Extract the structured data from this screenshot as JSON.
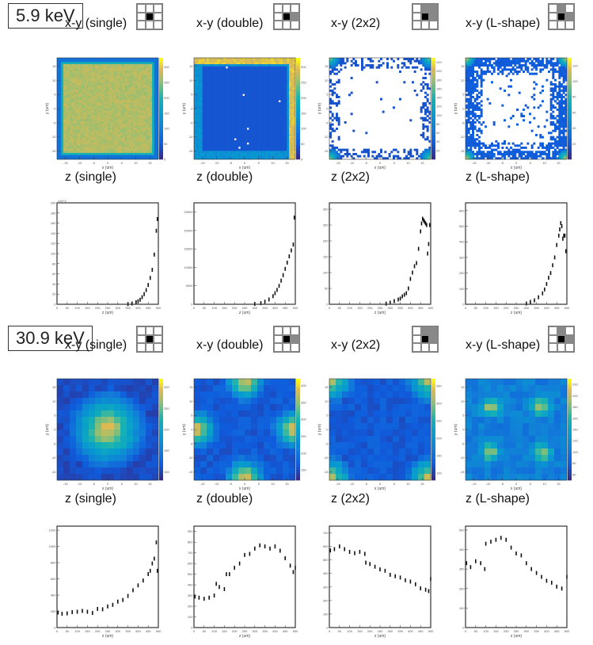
{
  "sections": [
    {
      "energy_label": "5.9 keV"
    },
    {
      "energy_label": "30.9 keV"
    }
  ],
  "pixel_patterns": {
    "single": [
      "w",
      "w",
      "w",
      "w",
      "c",
      "w",
      "w",
      "w",
      "w"
    ],
    "double": [
      "w",
      "w",
      "w",
      "w",
      "c",
      "g",
      "w",
      "w",
      "w"
    ],
    "2x2": [
      "w",
      "g",
      "g",
      "w",
      "c",
      "g",
      "w",
      "w",
      "w"
    ],
    "L-shape": [
      "w",
      "g",
      "w",
      "w",
      "c",
      "g",
      "w",
      "w",
      "w"
    ]
  },
  "chart_data": [
    {
      "id": "xy-single-5.9",
      "type": "heatmap",
      "title": "x-y (single)",
      "pattern": "single",
      "xlabel": "x (um)",
      "ylabel": "y (um)",
      "xticks": [
        -15,
        -10,
        -5,
        0,
        5,
        10,
        15
      ],
      "yticks": [
        -15,
        -10,
        -5,
        0,
        5,
        10,
        15
      ],
      "xlim": [
        -18,
        18
      ],
      "ylim": [
        -18,
        18
      ],
      "zticks": [
        0,
        50,
        100,
        150,
        200,
        250,
        300
      ],
      "zlim": [
        0,
        330
      ],
      "description": "uniform high (~280) interior, low at borders"
    },
    {
      "id": "xy-double-5.9",
      "type": "heatmap",
      "title": "x-y (double)",
      "pattern": "double",
      "xlabel": "x (um)",
      "ylabel": "y (um)",
      "xticks": [
        -15,
        -10,
        -5,
        0,
        5,
        10,
        15
      ],
      "yticks": [
        -15,
        -10,
        -5,
        0,
        5,
        10,
        15
      ],
      "xlim": [
        -18,
        18
      ],
      "ylim": [
        -18,
        18
      ],
      "zticks": [
        0,
        50,
        100,
        150,
        200,
        250,
        300
      ],
      "zlim": [
        0,
        330
      ],
      "description": "low interior, high along top and right edges"
    },
    {
      "id": "xy-2x2-5.9",
      "type": "heatmap",
      "title": "x-y (2x2)",
      "pattern": "2x2",
      "xlabel": "x (um)",
      "ylabel": "y (um)",
      "xticks": [
        -15,
        -10,
        -5,
        0,
        5,
        10,
        15
      ],
      "yticks": [
        -15,
        -10,
        -5,
        0,
        5,
        10,
        15
      ],
      "xlim": [
        -18,
        18
      ],
      "ylim": [
        -18,
        18
      ],
      "zticks": [
        20,
        40,
        60,
        80,
        100,
        120,
        140,
        160,
        180,
        200,
        220
      ],
      "zlim": [
        0,
        230
      ],
      "description": "mostly empty, counts concentrated at corners"
    },
    {
      "id": "xy-lshape-5.9",
      "type": "heatmap",
      "title": "x-y (L-shape)",
      "pattern": "L-shape",
      "xlabel": "x (um)",
      "ylabel": "y (um)",
      "xticks": [
        -15,
        -10,
        -5,
        0,
        5,
        10,
        15
      ],
      "yticks": [
        -15,
        -10,
        -5,
        0,
        5,
        10,
        15
      ],
      "xlim": [
        -18,
        18
      ],
      "ylim": [
        -18,
        18
      ],
      "zticks": [
        20,
        40,
        60,
        80,
        100,
        120
      ],
      "zlim": [
        0,
        130
      ],
      "description": "sparse interior, denser near edges and corners"
    },
    {
      "id": "z-single-5.9",
      "type": "scatter",
      "title": "z (single)",
      "xlabel": "z (um)",
      "xlim": [
        0,
        500
      ],
      "ylim": [
        0,
        200000
      ],
      "xticks": [
        0,
        50,
        100,
        150,
        200,
        250,
        300,
        350,
        400,
        450,
        500
      ],
      "yticks": [
        0,
        20000,
        40000,
        60000,
        80000,
        100000,
        120000,
        140000,
        160000,
        180000,
        200000
      ],
      "y_multiplier_label": "x10^3",
      "x": [
        350,
        370,
        390,
        400,
        410,
        420,
        430,
        440,
        450,
        460,
        470,
        480,
        490,
        495
      ],
      "y": [
        500,
        1500,
        4000,
        6000,
        9000,
        14000,
        20000,
        28000,
        38000,
        52000,
        68000,
        98000,
        145000,
        168000
      ]
    },
    {
      "id": "z-double-5.9",
      "type": "scatter",
      "title": "z (double)",
      "xlabel": "z (um)",
      "xlim": [
        0,
        500
      ],
      "ylim": [
        0,
        27500
      ],
      "xticks": [
        0,
        50,
        100,
        150,
        200,
        250,
        300,
        350,
        400,
        450,
        500
      ],
      "yticks": [
        0,
        5000,
        10000,
        15000,
        20000,
        25000
      ],
      "x": [
        300,
        330,
        350,
        370,
        390,
        400,
        410,
        420,
        430,
        440,
        450,
        460,
        470,
        480,
        490,
        495
      ],
      "y": [
        100,
        300,
        700,
        1300,
        2200,
        3000,
        3900,
        5000,
        6400,
        7900,
        9600,
        11300,
        13000,
        14600,
        16200,
        23500
      ]
    },
    {
      "id": "z-2x2-5.9",
      "type": "scatter",
      "title": "z (2x2)",
      "xlabel": "z (um)",
      "xlim": [
        0,
        500
      ],
      "ylim": [
        0,
        320
      ],
      "xticks": [
        0,
        50,
        100,
        150,
        200,
        250,
        300,
        350,
        400,
        450,
        500
      ],
      "yticks": [
        0,
        50,
        100,
        150,
        200,
        250,
        300
      ],
      "x": [
        280,
        300,
        320,
        340,
        350,
        360,
        370,
        380,
        390,
        400,
        410,
        420,
        430,
        440,
        450,
        455,
        460,
        465,
        470,
        475,
        480,
        485,
        490,
        495
      ],
      "y": [
        2,
        5,
        10,
        15,
        18,
        25,
        30,
        35,
        50,
        80,
        100,
        120,
        130,
        175,
        230,
        255,
        270,
        265,
        260,
        255,
        250,
        160,
        190,
        250
      ]
    },
    {
      "id": "z-lshape-5.9",
      "type": "scatter",
      "title": "z (L-shape)",
      "xlabel": "z (um)",
      "xlim": [
        0,
        500
      ],
      "ylim": [
        0,
        650
      ],
      "xticks": [
        0,
        50,
        100,
        150,
        200,
        250,
        300,
        350,
        400,
        450,
        500
      ],
      "yticks": [
        0,
        100,
        200,
        300,
        400,
        500,
        600
      ],
      "x": [
        300,
        320,
        340,
        360,
        380,
        390,
        400,
        410,
        420,
        430,
        440,
        450,
        460,
        465,
        470,
        475,
        480,
        485,
        490,
        495
      ],
      "y": [
        5,
        15,
        25,
        45,
        70,
        95,
        130,
        170,
        200,
        250,
        300,
        380,
        440,
        480,
        520,
        500,
        420,
        440,
        440,
        340
      ]
    },
    {
      "id": "xy-single-30.9",
      "type": "heatmap",
      "title": "x-y (single)",
      "pattern": "single",
      "xlabel": "x (um)",
      "ylabel": "y (um)",
      "xticks": [
        -15,
        -10,
        -5,
        0,
        5,
        10,
        15
      ],
      "yticks": [
        -15,
        -10,
        -5,
        0,
        5,
        10,
        15
      ],
      "xlim": [
        -18,
        18
      ],
      "ylim": [
        -18,
        18
      ],
      "zticks": [
        100,
        150,
        200,
        250,
        300
      ],
      "zlim": [
        80,
        320
      ],
      "description": "peak at center"
    },
    {
      "id": "xy-double-30.9",
      "type": "heatmap",
      "title": "x-y (double)",
      "pattern": "double",
      "xlabel": "x (um)",
      "ylabel": "y (um)",
      "xticks": [
        -15,
        -10,
        -5,
        0,
        5,
        10,
        15
      ],
      "yticks": [
        -15,
        -10,
        -5,
        0,
        5,
        10,
        15
      ],
      "xlim": [
        -18,
        18
      ],
      "ylim": [
        -18,
        18
      ],
      "zticks": [
        150,
        200,
        250,
        300,
        350,
        400
      ],
      "zlim": [
        120,
        420
      ],
      "description": "peaks at edge midpoints"
    },
    {
      "id": "xy-2x2-30.9",
      "type": "heatmap",
      "title": "x-y (2x2)",
      "pattern": "2x2",
      "xlabel": "x (um)",
      "ylabel": "y (um)",
      "xticks": [
        -15,
        -10,
        -5,
        0,
        5,
        10,
        15
      ],
      "yticks": [
        -15,
        -10,
        -5,
        0,
        5,
        10,
        15
      ],
      "xlim": [
        -18,
        18
      ],
      "ylim": [
        -18,
        18
      ],
      "zticks": [
        100,
        150,
        200,
        250,
        300,
        350
      ],
      "zlim": [
        80,
        370
      ],
      "description": "peaks at corners"
    },
    {
      "id": "xy-lshape-30.9",
      "type": "heatmap",
      "title": "x-y (L-shape)",
      "pattern": "L-shape",
      "xlabel": "x (um)",
      "ylabel": "y (um)",
      "xticks": [
        -15,
        -10,
        -5,
        0,
        5,
        10,
        15
      ],
      "yticks": [
        -15,
        -10,
        -5,
        0,
        5,
        10,
        15
      ],
      "xlim": [
        -18,
        18
      ],
      "ylim": [
        -18,
        18
      ],
      "zticks": [
        60,
        80,
        100,
        120,
        140,
        160,
        180,
        200,
        220
      ],
      "zlim": [
        50,
        230
      ],
      "description": "peaks at four off-center quadrants"
    },
    {
      "id": "z-single-30.9",
      "type": "scatter",
      "title": "z (single)",
      "xlabel": "z (um)",
      "xlim": [
        0,
        500
      ],
      "ylim": [
        0,
        1250
      ],
      "xticks": [
        0,
        50,
        100,
        150,
        200,
        250,
        300,
        350,
        400,
        450,
        500
      ],
      "yticks": [
        0,
        200,
        400,
        600,
        800,
        1000,
        1200
      ],
      "x": [
        5,
        25,
        50,
        75,
        100,
        125,
        150,
        175,
        200,
        225,
        250,
        275,
        300,
        325,
        350,
        375,
        400,
        425,
        450,
        460,
        470,
        480,
        490,
        495
      ],
      "y": [
        185,
        170,
        175,
        190,
        195,
        205,
        195,
        180,
        230,
        225,
        260,
        280,
        320,
        340,
        390,
        460,
        520,
        580,
        660,
        700,
        790,
        850,
        1050,
        700
      ]
    },
    {
      "id": "z-double-30.9",
      "type": "scatter",
      "title": "z (double)",
      "xlabel": "z (um)",
      "xlim": [
        0,
        500
      ],
      "ylim": [
        0,
        950
      ],
      "xticks": [
        0,
        50,
        100,
        150,
        200,
        250,
        300,
        350,
        400,
        450,
        500
      ],
      "yticks": [
        0,
        100,
        200,
        300,
        400,
        500,
        600,
        700,
        800,
        900
      ],
      "x": [
        5,
        25,
        50,
        75,
        100,
        110,
        125,
        150,
        160,
        175,
        200,
        225,
        250,
        275,
        300,
        325,
        350,
        375,
        400,
        425,
        450,
        475,
        490,
        500
      ],
      "y": [
        290,
        280,
        270,
        280,
        300,
        410,
        380,
        360,
        500,
        500,
        560,
        600,
        680,
        690,
        740,
        770,
        760,
        740,
        760,
        720,
        650,
        580,
        520,
        560
      ]
    },
    {
      "id": "z-2x2-30.9",
      "type": "scatter",
      "title": "z (2x2)",
      "xlabel": "z (um)",
      "xlim": [
        0,
        500
      ],
      "ylim": [
        0,
        750
      ],
      "xticks": [
        0,
        50,
        100,
        150,
        200,
        250,
        300,
        350,
        400,
        450,
        500
      ],
      "yticks": [
        0,
        100,
        200,
        300,
        400,
        500,
        600,
        700
      ],
      "x": [
        5,
        25,
        50,
        75,
        100,
        125,
        150,
        175,
        180,
        200,
        225,
        250,
        275,
        300,
        325,
        350,
        375,
        400,
        425,
        450,
        475,
        490,
        500
      ],
      "y": [
        570,
        580,
        600,
        580,
        560,
        550,
        560,
        545,
        480,
        470,
        450,
        430,
        420,
        390,
        380,
        370,
        350,
        340,
        320,
        290,
        280,
        270,
        360
      ]
    },
    {
      "id": "z-lshape-30.9",
      "type": "scatter",
      "title": "z (L-shape)",
      "xlabel": "z (um)",
      "xlim": [
        0,
        500
      ],
      "ylim": [
        0,
        520
      ],
      "xticks": [
        0,
        50,
        100,
        150,
        200,
        250,
        300,
        350,
        400,
        450,
        500
      ],
      "yticks": [
        0,
        100,
        200,
        300,
        400,
        500
      ],
      "x": [
        5,
        25,
        50,
        75,
        95,
        100,
        125,
        150,
        175,
        200,
        225,
        250,
        275,
        300,
        325,
        350,
        375,
        400,
        425,
        450,
        475,
        500
      ],
      "y": [
        330,
        310,
        340,
        330,
        300,
        430,
        440,
        450,
        460,
        450,
        410,
        380,
        370,
        330,
        300,
        280,
        260,
        240,
        230,
        210,
        200,
        260
      ]
    }
  ]
}
